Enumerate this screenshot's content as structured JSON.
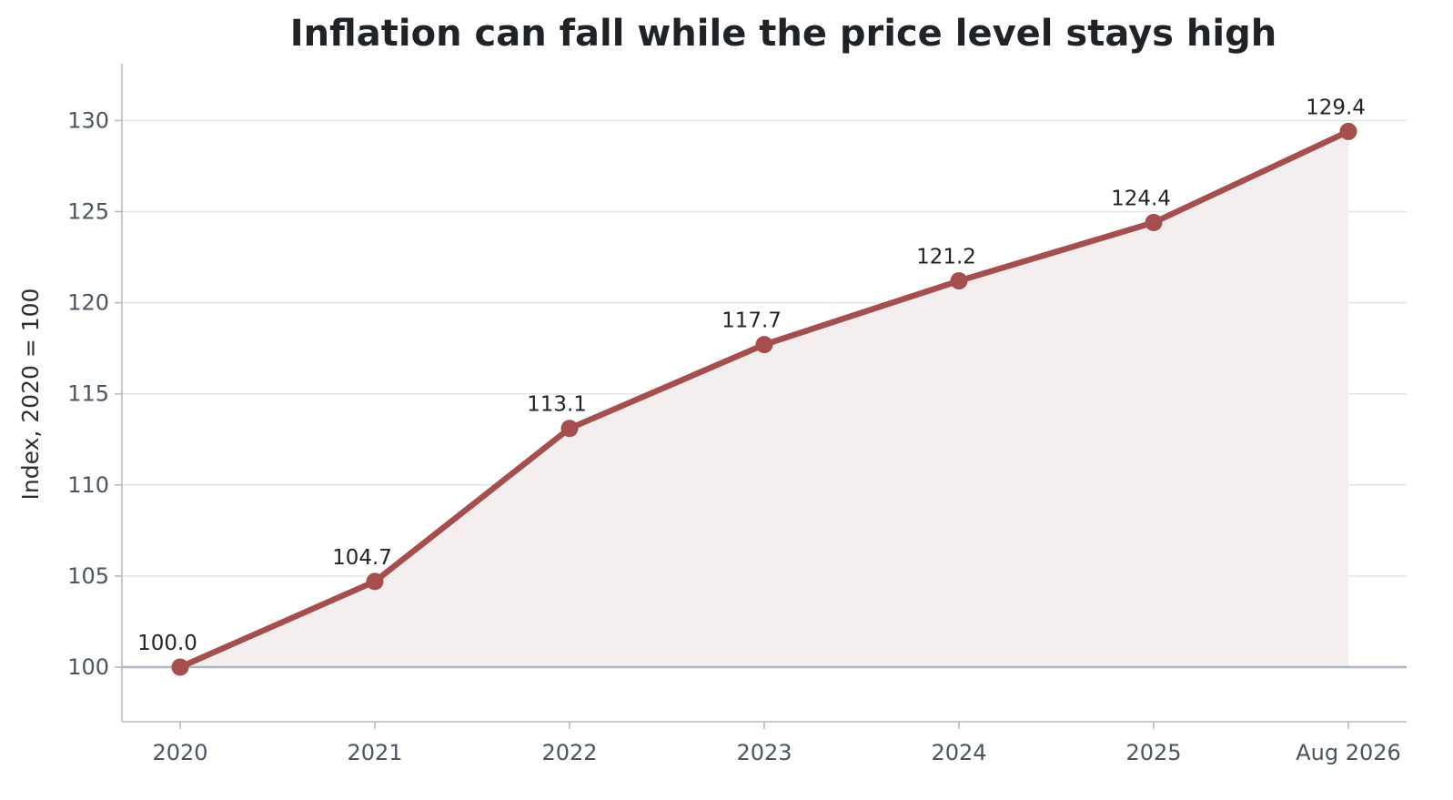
{
  "chart_data": {
    "type": "line",
    "title": "Inflation can fall while the price level stays high",
    "ylabel": "Index, 2020 = 100",
    "xlabel": "",
    "categories": [
      "2020",
      "2021",
      "2022",
      "2023",
      "2024",
      "2025",
      "Aug 2026"
    ],
    "values": [
      100.0,
      104.7,
      113.1,
      117.7,
      121.2,
      124.4,
      129.4
    ],
    "data_labels": [
      "100.0",
      "104.7",
      "113.1",
      "117.7",
      "121.2",
      "124.4",
      "129.4"
    ],
    "ylim": [
      97,
      133
    ],
    "yticks": [
      100,
      105,
      110,
      115,
      120,
      125,
      130
    ],
    "baseline": 100,
    "grid": true,
    "area_fill": true,
    "colors": {
      "line": "#a64d4d",
      "fill": "#f5eeee",
      "grid": "#e3e5e8",
      "axis": "#b4bac1",
      "baseline": "#aeb6bf"
    }
  }
}
